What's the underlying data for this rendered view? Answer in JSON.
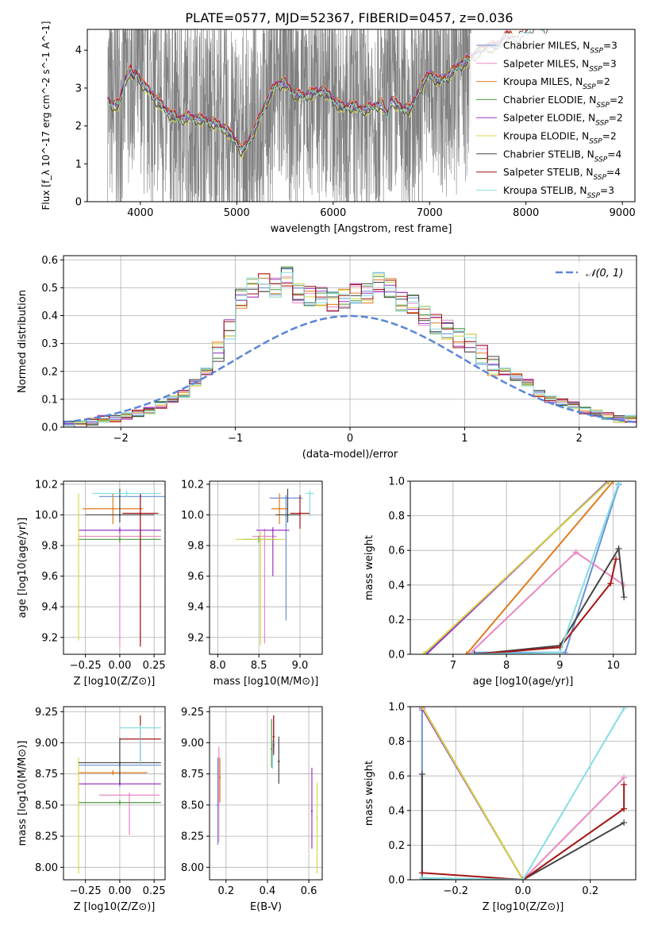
{
  "figure_title": "PLATE=0577, MJD=52367, FIBERID=0457, z=0.036",
  "series_colors": [
    "#6a8fd8",
    "#e887c2",
    "#e07b1e",
    "#4c9a3c",
    "#9a34c4",
    "#d6d64a",
    "#444444",
    "#a31515",
    "#86dde3"
  ],
  "chart_data": [
    {
      "type": "line",
      "id": "spectrum",
      "xlabel": "wavelength [Angstrom, rest frame]",
      "ylabel": "Flux [f_λ 10^-17 erg cm^-2 s^-1 A^-1]",
      "xlim": [
        3450,
        9130
      ],
      "ylim": [
        0,
        4.55
      ],
      "xticks": [
        4000,
        5000,
        6000,
        7000,
        8000,
        9000
      ],
      "yticks": [
        0,
        1,
        2,
        3,
        4
      ],
      "grid": false,
      "legend_position": "right",
      "data_color": "#808080",
      "data_note": "observed spectrum (grey), very noisy; data coverage 3660–7430 Å",
      "x": [
        3660,
        3720,
        3780,
        3840,
        3900,
        3930,
        3960,
        4000,
        4100,
        4200,
        4300,
        4400,
        4500,
        4600,
        4700,
        4800,
        4900,
        5000,
        5050,
        5100,
        5200,
        5300,
        5400,
        5500,
        5600,
        5700,
        5800,
        5900,
        6000,
        6100,
        6200,
        6300,
        6400,
        6500,
        6563,
        6600,
        6700,
        6800,
        6900,
        7000,
        7100,
        7200,
        7300,
        7400,
        7500,
        7600,
        7700,
        7800,
        7900,
        8000,
        8100,
        8200,
        8300,
        8400,
        8500,
        8600,
        8700,
        8800,
        8900,
        9000,
        9100
      ],
      "model_base": [
        2.7,
        2.55,
        2.6,
        3.2,
        3.5,
        3.3,
        3.45,
        3.2,
        2.9,
        2.6,
        2.35,
        2.2,
        2.25,
        2.2,
        2.15,
        2.05,
        1.9,
        1.6,
        1.35,
        1.5,
        2.0,
        2.6,
        3.1,
        3.15,
        2.85,
        2.8,
        2.9,
        2.95,
        2.7,
        2.5,
        2.55,
        2.45,
        2.5,
        2.6,
        2.3,
        2.7,
        2.5,
        2.45,
        3.0,
        3.4,
        3.2,
        3.35,
        3.6,
        3.75,
        3.95,
        4.1,
        4.1,
        4.4,
        4.35,
        4.5,
        4.7,
        4.6,
        4.85,
        4.9,
        5.0,
        5.1,
        5.05,
        5.2,
        5.3,
        5.4,
        5.5
      ],
      "series": [
        {
          "name": "Chabrier MILES, N_SSP=3",
          "offset": 0.05,
          "end": 7850
        },
        {
          "name": "Salpeter MILES, N_SSP=3",
          "offset": 0.08,
          "end": 7850
        },
        {
          "name": "Kroupa MILES, N_SSP=2",
          "offset": 0.06,
          "end": 7850
        },
        {
          "name": "Chabrier ELODIE, N_SSP=2",
          "offset": 0.02,
          "end": 7850
        },
        {
          "name": "Salpeter ELODIE, N_SSP=2",
          "offset": 0.0,
          "end": 7850
        },
        {
          "name": "Kroupa ELODIE, N_SSP=2",
          "offset": -0.12,
          "end": 7850
        },
        {
          "name": "Chabrier STELIB, N_SSP=4",
          "offset": -0.1,
          "end": 9100
        },
        {
          "name": "Salpeter STELIB, N_SSP=4",
          "offset": 0.04,
          "end": 9100
        },
        {
          "name": "Kroupa STELIB, N_SSP=3",
          "offset": -0.02,
          "end": 9100
        }
      ]
    },
    {
      "type": "line",
      "id": "residual-hist",
      "xlabel": "(data-model)/error",
      "ylabel": "Normed distribution",
      "xlim": [
        -2.5,
        2.5
      ],
      "ylim": [
        0,
        0.615
      ],
      "xticks": [
        -2,
        -1,
        0,
        1,
        2
      ],
      "yticks": [
        0.0,
        0.1,
        0.2,
        0.3,
        0.4,
        0.5,
        0.6
      ],
      "grid": true,
      "legend_position": "top-right",
      "gaussian_label": "𝒩(0, 1)",
      "gaussian_color": "#5b85d6",
      "bin_edges_start": -2.5,
      "bin_width": 0.1,
      "base_values": [
        0.01,
        0.01,
        0.02,
        0.03,
        0.03,
        0.04,
        0.05,
        0.06,
        0.08,
        0.1,
        0.12,
        0.16,
        0.2,
        0.27,
        0.35,
        0.46,
        0.5,
        0.52,
        0.5,
        0.54,
        0.48,
        0.47,
        0.47,
        0.45,
        0.46,
        0.48,
        0.48,
        0.52,
        0.5,
        0.45,
        0.44,
        0.4,
        0.37,
        0.35,
        0.32,
        0.3,
        0.26,
        0.22,
        0.2,
        0.18,
        0.16,
        0.12,
        0.1,
        0.09,
        0.08,
        0.06,
        0.05,
        0.04,
        0.03,
        0.03
      ]
    },
    {
      "type": "scatter",
      "id": "age-vs-z",
      "xlabel": "Z [log10(Z/Z⊙)]",
      "ylabel": "age [log10(age/yr)]",
      "xlim": [
        -0.41,
        0.33
      ],
      "ylim": [
        9.09,
        10.22
      ],
      "xticks": [
        -0.25,
        0.0,
        0.25
      ],
      "yticks": [
        9.2,
        9.4,
        9.6,
        9.8,
        10.0,
        10.2
      ],
      "grid": true,
      "points": [
        {
          "x": 0.15,
          "xerr": 0.3,
          "y": 10.12,
          "yerr_lo": 0.95,
          "yerr_hi": 0.02,
          "c": 0
        },
        {
          "x": 0.0,
          "xerr": 0.3,
          "y": 9.86,
          "yerr_lo": 0.72,
          "yerr_hi": 0.02,
          "c": 1
        },
        {
          "x": -0.05,
          "xerr": 0.22,
          "y": 10.04,
          "yerr_lo": 0.1,
          "yerr_hi": 0.1,
          "c": 2
        },
        {
          "x": 0.0,
          "xerr": 0.3,
          "y": 9.84,
          "yerr_lo": 0.02,
          "yerr_hi": 0.02,
          "c": 3
        },
        {
          "x": 0.0,
          "xerr": 0.3,
          "y": 9.9,
          "yerr_lo": 0.02,
          "yerr_hi": 0.02,
          "c": 4
        },
        {
          "x": -0.3,
          "xerr": 0.0,
          "y": 9.84,
          "yerr_lo": 0.66,
          "yerr_hi": 0.3,
          "c": 5
        },
        {
          "x": 0.0,
          "xerr": 0.25,
          "y": 10.0,
          "yerr_lo": 0.05,
          "yerr_hi": 0.17,
          "c": 6
        },
        {
          "x": 0.15,
          "xerr": 0.13,
          "y": 10.01,
          "yerr_lo": 0.87,
          "yerr_hi": 0.13,
          "c": 7
        },
        {
          "x": 0.05,
          "xerr": 0.25,
          "y": 10.14,
          "yerr_lo": 0.02,
          "yerr_hi": 0.02,
          "c": 8
        }
      ]
    },
    {
      "type": "scatter",
      "id": "age-vs-mass",
      "xlabel": "mass [log10(M/M⊙)]",
      "ylabel": "",
      "xlim": [
        7.9,
        9.27
      ],
      "ylim": [
        9.09,
        10.22
      ],
      "xticks": [
        8.0,
        8.5,
        9.0
      ],
      "yticks": [
        9.2,
        9.4,
        9.6,
        9.8,
        10.0,
        10.2
      ],
      "grid": true,
      "points": [
        {
          "x": 8.83,
          "xerr": 0.2,
          "y": 10.11,
          "yerr_lo": 0.8,
          "yerr_hi": 0.02,
          "c": 0
        },
        {
          "x": 8.57,
          "xerr": 0.15,
          "y": 9.86,
          "yerr_lo": 0.7,
          "yerr_hi": 0.05,
          "c": 1
        },
        {
          "x": 8.75,
          "xerr": 0.1,
          "y": 10.04,
          "yerr_lo": 0.1,
          "yerr_hi": 0.1,
          "c": 2
        },
        {
          "x": 8.5,
          "xerr": 0.2,
          "y": 9.84,
          "yerr_lo": 0.02,
          "yerr_hi": 0.02,
          "c": 3
        },
        {
          "x": 8.67,
          "xerr": 0.2,
          "y": 9.9,
          "yerr_lo": 0.3,
          "yerr_hi": 0.02,
          "c": 4
        },
        {
          "x": 8.52,
          "xerr": 0.3,
          "y": 9.84,
          "yerr_lo": 0.69,
          "yerr_hi": 0.05,
          "c": 5
        },
        {
          "x": 8.85,
          "xerr": 0.15,
          "y": 10.0,
          "yerr_lo": 0.05,
          "yerr_hi": 0.17,
          "c": 6
        },
        {
          "x": 9.0,
          "xerr": 0.12,
          "y": 10.01,
          "yerr_lo": 0.1,
          "yerr_hi": 0.12,
          "c": 7
        },
        {
          "x": 9.12,
          "xerr": 0.05,
          "y": 10.14,
          "yerr_lo": 0.15,
          "yerr_hi": 0.02,
          "c": 8
        }
      ]
    },
    {
      "type": "line",
      "id": "mass-weight-vs-age",
      "xlabel": "age [log10(age/yr)]",
      "ylabel": "mass weight",
      "xlim": [
        6.2,
        10.42
      ],
      "ylim": [
        0,
        1.0
      ],
      "xticks": [
        7,
        8,
        9,
        10
      ],
      "yticks": [
        0.0,
        0.2,
        0.4,
        0.6,
        0.8,
        1.0
      ],
      "grid": true,
      "series": [
        {
          "c": 0,
          "x": [
            7.4,
            9.1,
            10.1
          ],
          "y": [
            0.01,
            0.01,
            0.98
          ]
        },
        {
          "c": 1,
          "x": [
            7.3,
            9.3,
            10.2
          ],
          "y": [
            0.0,
            0.59,
            0.4
          ]
        },
        {
          "c": 2,
          "x": [
            7.25,
            10.0
          ],
          "y": [
            0.0,
            1.0
          ]
        },
        {
          "c": 3,
          "x": [
            6.48,
            9.9
          ],
          "y": [
            0.0,
            1.0
          ]
        },
        {
          "c": 4,
          "x": [
            6.5,
            9.9
          ],
          "y": [
            0.0,
            1.0
          ]
        },
        {
          "c": 5,
          "x": [
            6.45,
            9.92
          ],
          "y": [
            0.0,
            1.0
          ]
        },
        {
          "c": 6,
          "x": [
            7.4,
            9.0,
            10.1,
            10.2
          ],
          "y": [
            0.0,
            0.05,
            0.61,
            0.33
          ]
        },
        {
          "c": 7,
          "x": [
            7.4,
            9.0,
            9.95,
            10.05
          ],
          "y": [
            0.0,
            0.04,
            0.41,
            0.55
          ]
        },
        {
          "c": 8,
          "x": [
            7.35,
            9.0,
            10.1
          ],
          "y": [
            0.0,
            0.01,
            0.99
          ]
        }
      ]
    },
    {
      "type": "scatter",
      "id": "mass-vs-z",
      "xlabel": "Z [log10(Z/Z⊙)]",
      "ylabel": "mass [log10(M/M⊙)]",
      "xlim": [
        -0.41,
        0.33
      ],
      "ylim": [
        7.9,
        9.29
      ],
      "xticks": [
        -0.25,
        0.0,
        0.25
      ],
      "yticks": [
        8.0,
        8.25,
        8.5,
        8.75,
        9.0,
        9.25
      ],
      "grid": true,
      "points": [
        {
          "x": 0.0,
          "xerr": 0.3,
          "y": 8.82,
          "yerr_lo": 0.02,
          "yerr_hi": 0.02,
          "c": 0
        },
        {
          "x": 0.07,
          "xerr": 0.22,
          "y": 8.58,
          "yerr_lo": 0.32,
          "yerr_hi": 0.02,
          "c": 1
        },
        {
          "x": -0.05,
          "xerr": 0.25,
          "y": 8.76,
          "yerr_lo": 0.02,
          "yerr_hi": 0.02,
          "c": 2
        },
        {
          "x": 0.0,
          "xerr": 0.3,
          "y": 8.52,
          "yerr_lo": 0.02,
          "yerr_hi": 0.02,
          "c": 3
        },
        {
          "x": 0.0,
          "xerr": 0.3,
          "y": 8.67,
          "yerr_lo": 0.02,
          "yerr_hi": 0.02,
          "c": 4
        },
        {
          "x": -0.3,
          "xerr": 0.0,
          "y": 8.5,
          "yerr_lo": 0.55,
          "yerr_hi": 0.38,
          "c": 5
        },
        {
          "x": 0.0,
          "xerr": 0.3,
          "y": 8.84,
          "yerr_lo": 0.17,
          "yerr_hi": 0.2,
          "c": 6
        },
        {
          "x": 0.15,
          "xerr": 0.15,
          "y": 9.03,
          "yerr_lo": 0.2,
          "yerr_hi": 0.19,
          "c": 7
        },
        {
          "x": 0.15,
          "xerr": 0.15,
          "y": 9.12,
          "yerr_lo": 0.3,
          "yerr_hi": 0.02,
          "c": 8
        }
      ]
    },
    {
      "type": "scatter",
      "id": "mass-vs-ebv",
      "xlabel": "E(B-V)",
      "ylabel": "",
      "xlim": [
        0.12,
        0.665
      ],
      "ylim": [
        7.9,
        9.29
      ],
      "xticks": [
        0.2,
        0.4,
        0.6
      ],
      "yticks": [
        8.0,
        8.25,
        8.5,
        8.75,
        9.0,
        9.25
      ],
      "grid": true,
      "points": [
        {
          "x": 0.16,
          "y": 8.5,
          "yerr_lo": 0.32,
          "yerr_hi": 0.38,
          "c": 0
        },
        {
          "x": 0.165,
          "y": 8.6,
          "yerr_lo": 0.4,
          "yerr_hi": 0.37,
          "c": 1
        },
        {
          "x": 0.17,
          "y": 8.72,
          "yerr_lo": 0.2,
          "yerr_hi": 0.16,
          "c": 2
        },
        {
          "x": 0.42,
          "y": 8.95,
          "yerr_lo": 0.15,
          "yerr_hi": 0.24,
          "c": 3
        },
        {
          "x": 0.43,
          "y": 8.98,
          "yerr_lo": 0.05,
          "yerr_hi": 0.24,
          "c": 4
        },
        {
          "x": 0.64,
          "y": 8.4,
          "yerr_lo": 0.45,
          "yerr_hi": 0.28,
          "c": 5
        },
        {
          "x": 0.455,
          "y": 8.85,
          "yerr_lo": 0.18,
          "yerr_hi": 0.2,
          "c": 6
        },
        {
          "x": 0.43,
          "y": 9.05,
          "yerr_lo": 0.15,
          "yerr_hi": 0.17,
          "c": 7
        },
        {
          "x": 0.425,
          "y": 8.9,
          "yerr_lo": 0.11,
          "yerr_hi": 0.12,
          "c": 8
        },
        {
          "x": 0.615,
          "y": 8.45,
          "yerr_lo": 0.3,
          "yerr_hi": 0.35,
          "c": 4
        }
      ]
    },
    {
      "type": "line",
      "id": "mass-weight-vs-z",
      "xlabel": "Z [log10(Z/Z⊙)]",
      "ylabel": "mass weight",
      "xlim": [
        -0.335,
        0.335
      ],
      "ylim": [
        0,
        1.0
      ],
      "xticks": [
        -0.2,
        0.0,
        0.2
      ],
      "yticks": [
        0.0,
        0.2,
        0.4,
        0.6,
        0.8,
        1.0
      ],
      "grid": true,
      "series": [
        {
          "c": 0,
          "x": [
            -0.3,
            -0.3,
            0.0
          ],
          "y": [
            0.98,
            0.01,
            0.0
          ]
        },
        {
          "c": 1,
          "x": [
            0.0,
            0.3
          ],
          "y": [
            0.0,
            0.59
          ]
        },
        {
          "c": 2,
          "x": [
            -0.3,
            0.0
          ],
          "y": [
            1.0,
            0.0
          ]
        },
        {
          "c": 3,
          "x": [
            -0.3,
            0.0
          ],
          "y": [
            1.0,
            0.0
          ]
        },
        {
          "c": 4,
          "x": [
            -0.3,
            0.0
          ],
          "y": [
            0.99,
            0.0
          ]
        },
        {
          "c": 5,
          "x": [
            -0.3,
            0.0
          ],
          "y": [
            1.0,
            0.0
          ]
        },
        {
          "c": 6,
          "x": [
            -0.3,
            -0.3,
            0.0,
            0.3
          ],
          "y": [
            0.61,
            0.0,
            0.0,
            0.33
          ]
        },
        {
          "c": 7,
          "x": [
            -0.3,
            0.0,
            0.3,
            0.3
          ],
          "y": [
            0.04,
            0.0,
            0.41,
            0.55
          ]
        },
        {
          "c": 8,
          "x": [
            -0.3,
            0.0,
            0.3
          ],
          "y": [
            0.01,
            0.0,
            0.99
          ]
        }
      ]
    }
  ]
}
